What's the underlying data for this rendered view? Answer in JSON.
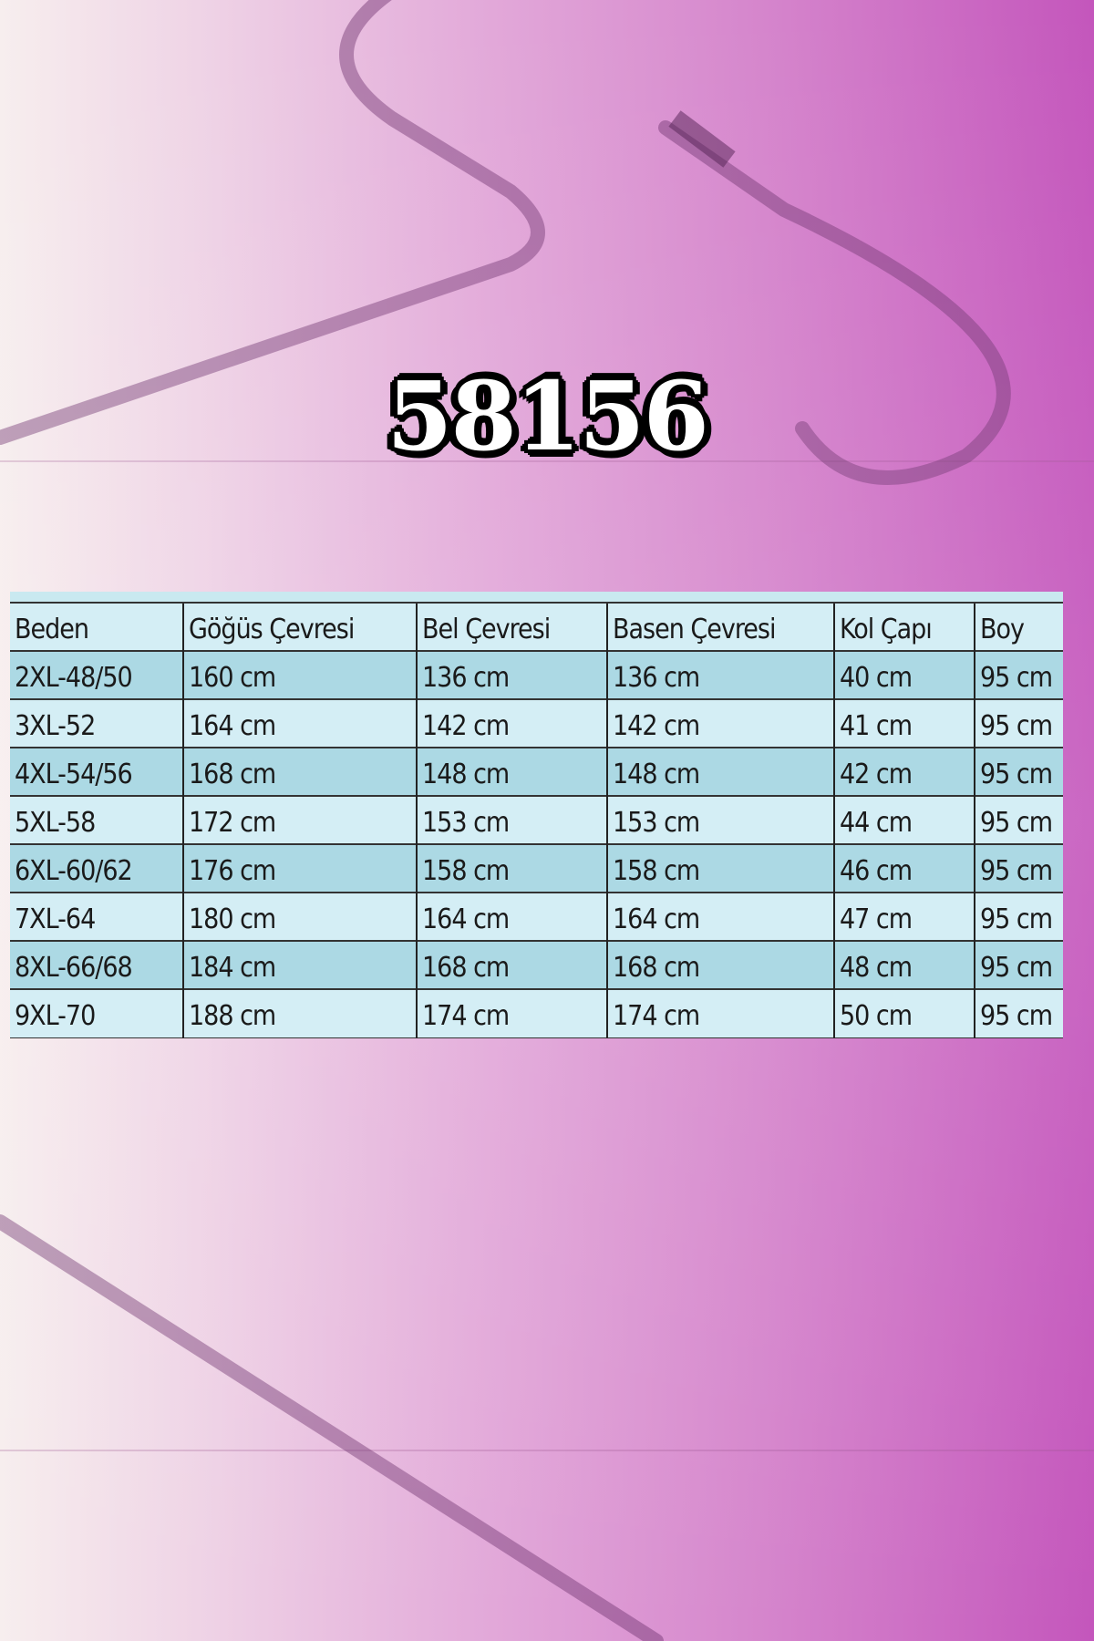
{
  "title": "58156",
  "colors": {
    "row_dark": "#acd9e4",
    "row_light": "#d4eef5",
    "background_right": "#c456bc"
  },
  "table": {
    "headers": [
      "Beden",
      "Göğüs Çevresi",
      "Bel Çevresi",
      "Basen Çevresi",
      "Kol Çapı",
      "Boy"
    ],
    "rows": [
      [
        "2XL-48/50",
        "160 cm",
        "136 cm",
        "136 cm",
        "40 cm",
        "95 cm"
      ],
      [
        "3XL-52",
        "164 cm",
        "142 cm",
        "142 cm",
        "41 cm",
        "95 cm"
      ],
      [
        "4XL-54/56",
        "168 cm",
        "148 cm",
        "148 cm",
        "42 cm",
        "95 cm"
      ],
      [
        "5XL-58",
        "172 cm",
        "153 cm",
        "153 cm",
        "44 cm",
        "95 cm"
      ],
      [
        "6XL-60/62",
        "176 cm",
        "158 cm",
        "158 cm",
        "46 cm",
        "95 cm"
      ],
      [
        "7XL-64",
        "180 cm",
        "164 cm",
        "164 cm",
        "47 cm",
        "95 cm"
      ],
      [
        "8XL-66/68",
        "184 cm",
        "168 cm",
        "168 cm",
        "48 cm",
        "95 cm"
      ],
      [
        "9XL-70",
        "188 cm",
        "174 cm",
        "174 cm",
        "50 cm",
        "95 cm"
      ]
    ]
  }
}
